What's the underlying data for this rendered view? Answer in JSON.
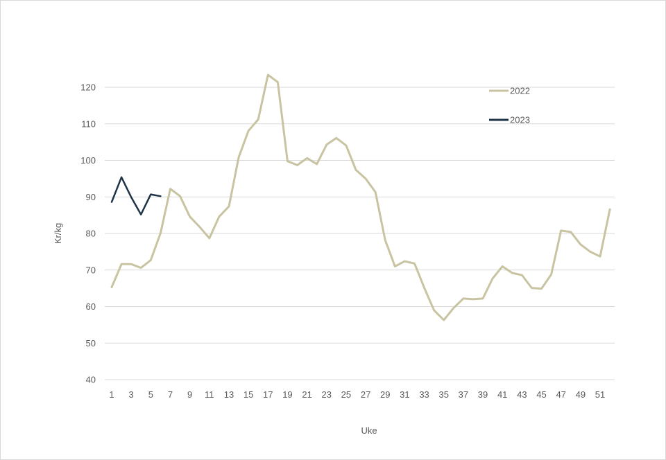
{
  "chart_data": {
    "type": "line",
    "title": "",
    "xlabel": "Uke",
    "ylabel": "Kr/kg",
    "ylim": [
      40,
      120
    ],
    "yticks": [
      40,
      50,
      60,
      70,
      80,
      90,
      100,
      110,
      120
    ],
    "yticks_labels": [
      "40",
      "50",
      "60",
      "70",
      "80",
      "90",
      "100",
      "110",
      "120"
    ],
    "xlim": [
      1,
      52
    ],
    "xticks": [
      1,
      3,
      5,
      7,
      9,
      11,
      13,
      15,
      17,
      19,
      21,
      23,
      25,
      27,
      29,
      31,
      33,
      35,
      37,
      39,
      41,
      43,
      45,
      47,
      49,
      51
    ],
    "xticks_labels": [
      "1",
      "3",
      "5",
      "7",
      "9",
      "11",
      "13",
      "15",
      "17",
      "19",
      "21",
      "23",
      "25",
      "27",
      "29",
      "31",
      "33",
      "35",
      "37",
      "39",
      "41",
      "43",
      "45",
      "47",
      "49",
      "51"
    ],
    "grid": true,
    "legend_position": "top-right",
    "series": [
      {
        "name": "2022",
        "color": "#c8c3a1",
        "x": [
          1,
          2,
          3,
          4,
          5,
          6,
          7,
          8,
          9,
          10,
          11,
          12,
          13,
          14,
          15,
          16,
          17,
          18,
          19,
          20,
          21,
          22,
          23,
          24,
          25,
          26,
          27,
          28,
          29,
          30,
          31,
          32,
          33,
          34,
          35,
          36,
          37,
          38,
          39,
          40,
          41,
          42,
          43,
          44,
          45,
          46,
          47,
          48,
          49,
          50,
          51,
          52
        ],
        "values": [
          65.3,
          71.6,
          71.6,
          70.6,
          72.7,
          80.1,
          92.2,
          90.2,
          84.6,
          81.8,
          78.7,
          84.6,
          87.4,
          100.8,
          108.1,
          111.2,
          123.4,
          121.4,
          99.8,
          98.7,
          100.6,
          99.0,
          104.3,
          106.1,
          104.1,
          97.4,
          95.0,
          91.3,
          78.2,
          71.0,
          72.4,
          71.8,
          65.1,
          59.0,
          56.3,
          59.6,
          62.2,
          62.0,
          62.2,
          67.7,
          71.0,
          69.2,
          68.6,
          65.1,
          64.9,
          68.8,
          80.8,
          80.4,
          77.0,
          75.0,
          73.7,
          86.6
        ]
      },
      {
        "name": "2023",
        "color": "#1f3348",
        "x": [
          1,
          2,
          3,
          4,
          5,
          6
        ],
        "values": [
          88.6,
          95.4,
          89.9,
          85.2,
          90.7,
          90.2
        ]
      }
    ]
  }
}
